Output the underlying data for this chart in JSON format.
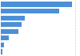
{
  "values": [
    9500,
    7800,
    3200,
    2800,
    2400,
    1100,
    400,
    180
  ],
  "bar_color": "#4a90d9",
  "background_color": "#ffffff",
  "grid_color": "#d0d0d0",
  "bar_height": 0.72,
  "xlim": [
    0,
    10500
  ]
}
